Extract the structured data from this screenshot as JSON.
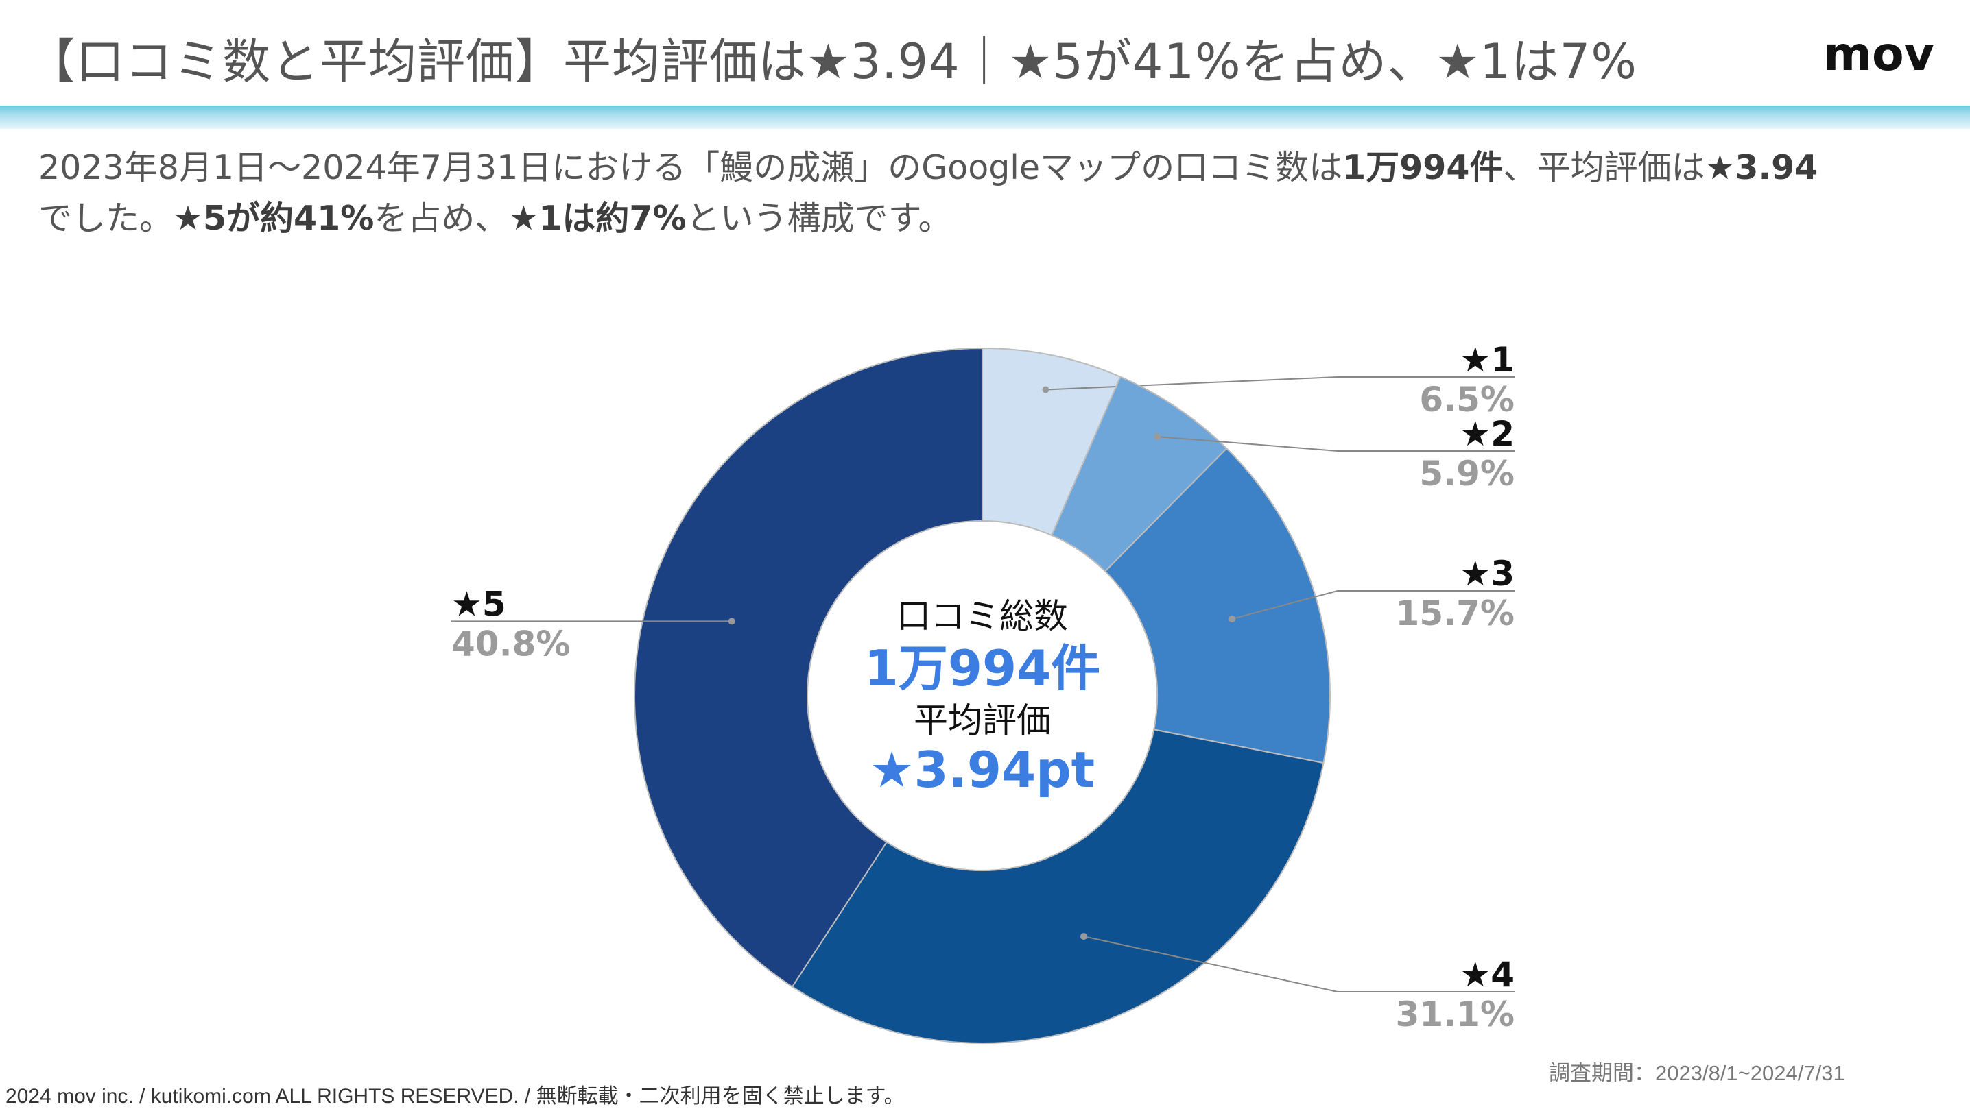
{
  "header": {
    "title": "【口コミ数と平均評価】平均評価は★3.94｜★5が41%を占め、★1は7%",
    "logo": "mov"
  },
  "lead": {
    "line1_a": "2023年8月1日～2024年7月31日における「鰻の成瀬」のGoogleマップの口コミ数は",
    "line1_b": "1万994件",
    "line1_c": "、平均評価は",
    "line1_d": "★3.94",
    "line2_a": "でした。",
    "line2_b": "★5が約41%",
    "line2_c": "を占め、",
    "line2_d": "★1は約7%",
    "line2_e": "という構成です。"
  },
  "chart_data": {
    "type": "pie",
    "categories": [
      "★1",
      "★2",
      "★3",
      "★4",
      "★5"
    ],
    "values": [
      6.5,
      5.9,
      15.7,
      31.1,
      40.8
    ],
    "value_labels": [
      "6.5%",
      "5.9%",
      "15.7%",
      "31.1%",
      "40.8%"
    ],
    "colors": [
      "#cfe0f3",
      "#6fa6da",
      "#3d82c6",
      "#0e5190",
      "#1c4182"
    ],
    "center": {
      "line1": "口コミ総数",
      "line2": "1万994件",
      "line3": "平均評価",
      "line4": "★3.94pt"
    },
    "accent_color": "#3b7de0"
  },
  "footer": {
    "copyright": "2024 mov inc. / kutikomi.com ALL RIGHTS RESERVED. / 無断転載・二次利用を固く禁止します。",
    "period": "調査期間：2023/8/1~2024/7/31"
  }
}
